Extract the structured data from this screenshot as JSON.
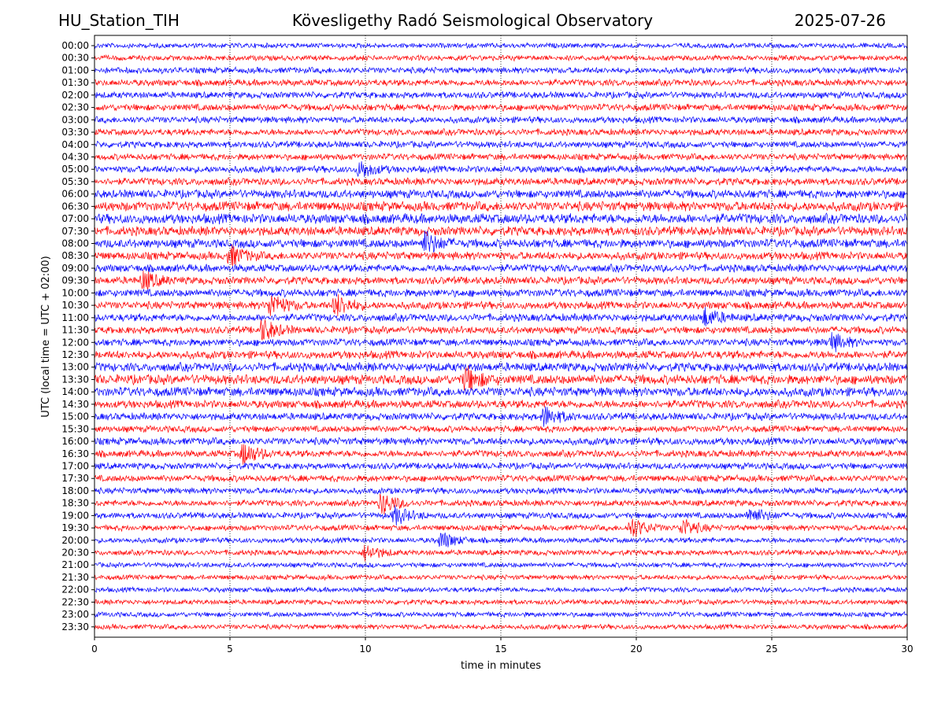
{
  "header": {
    "station": "HU_Station_TIH",
    "observatory": "Kövesligethy Radó Seismological Observatory",
    "date": "2025-07-26"
  },
  "chart_data": {
    "type": "line",
    "subtype": "helicorder",
    "title": "Kövesligethy Radó Seismological Observatory",
    "xlabel": "time in minutes",
    "ylabel": "UTC (local time = UTC + 02:00)",
    "xlim": [
      0,
      30
    ],
    "xticks": [
      0,
      5,
      10,
      15,
      20,
      25,
      30
    ],
    "grid": "vertical dotted lines at x = 5, 10, 15, 20, 25",
    "colors": [
      "#0000ff",
      "#ff0000"
    ],
    "rows": [
      "00:00",
      "00:30",
      "01:00",
      "01:30",
      "02:00",
      "02:30",
      "03:00",
      "03:30",
      "04:00",
      "04:30",
      "05:00",
      "05:30",
      "06:00",
      "06:30",
      "07:00",
      "07:30",
      "08:00",
      "08:30",
      "09:00",
      "09:30",
      "10:00",
      "10:30",
      "11:00",
      "11:30",
      "12:00",
      "12:30",
      "13:00",
      "13:30",
      "14:00",
      "14:30",
      "15:00",
      "15:30",
      "16:00",
      "16:30",
      "17:00",
      "17:30",
      "18:00",
      "18:30",
      "19:00",
      "19:30",
      "20:00",
      "20:30",
      "21:00",
      "21:30",
      "22:00",
      "22:30",
      "23:00",
      "23:30"
    ],
    "noise_level": [
      0.25,
      0.3,
      0.4,
      0.45,
      0.45,
      0.5,
      0.45,
      0.45,
      0.45,
      0.45,
      0.5,
      0.55,
      0.7,
      0.85,
      0.9,
      0.8,
      0.75,
      0.65,
      0.6,
      0.6,
      0.6,
      0.6,
      0.6,
      0.55,
      0.55,
      0.65,
      0.75,
      0.85,
      0.8,
      0.65,
      0.55,
      0.45,
      0.55,
      0.5,
      0.45,
      0.45,
      0.4,
      0.4,
      0.4,
      0.35,
      0.3,
      0.3,
      0.25,
      0.25,
      0.25,
      0.25,
      0.25,
      0.25
    ],
    "events": [
      {
        "row": "05:00",
        "minute": 9.8,
        "amplitude": 1.5
      },
      {
        "row": "08:00",
        "minute": 12.2,
        "amplitude": 2.0
      },
      {
        "row": "08:30",
        "minute": 5.0,
        "amplitude": 1.8
      },
      {
        "row": "09:30",
        "minute": 1.8,
        "amplitude": 1.6
      },
      {
        "row": "10:30",
        "minute": 6.5,
        "amplitude": 2.2
      },
      {
        "row": "10:30",
        "minute": 8.9,
        "amplitude": 2.0
      },
      {
        "row": "11:00",
        "minute": 22.5,
        "amplitude": 1.6
      },
      {
        "row": "11:30",
        "minute": 6.2,
        "amplitude": 2.0
      },
      {
        "row": "12:00",
        "minute": 27.2,
        "amplitude": 1.6
      },
      {
        "row": "13:30",
        "minute": 13.7,
        "amplitude": 2.2
      },
      {
        "row": "15:00",
        "minute": 16.6,
        "amplitude": 1.8
      },
      {
        "row": "16:30",
        "minute": 5.5,
        "amplitude": 2.0
      },
      {
        "row": "18:30",
        "minute": 10.6,
        "amplitude": 2.0
      },
      {
        "row": "19:00",
        "minute": 11.1,
        "amplitude": 1.6
      },
      {
        "row": "19:00",
        "minute": 24.2,
        "amplitude": 1.5
      },
      {
        "row": "19:30",
        "minute": 19.8,
        "amplitude": 2.0
      },
      {
        "row": "19:30",
        "minute": 21.7,
        "amplitude": 1.6
      },
      {
        "row": "20:00",
        "minute": 12.8,
        "amplitude": 1.6
      },
      {
        "row": "20:30",
        "minute": 10.0,
        "amplitude": 1.5
      }
    ]
  }
}
